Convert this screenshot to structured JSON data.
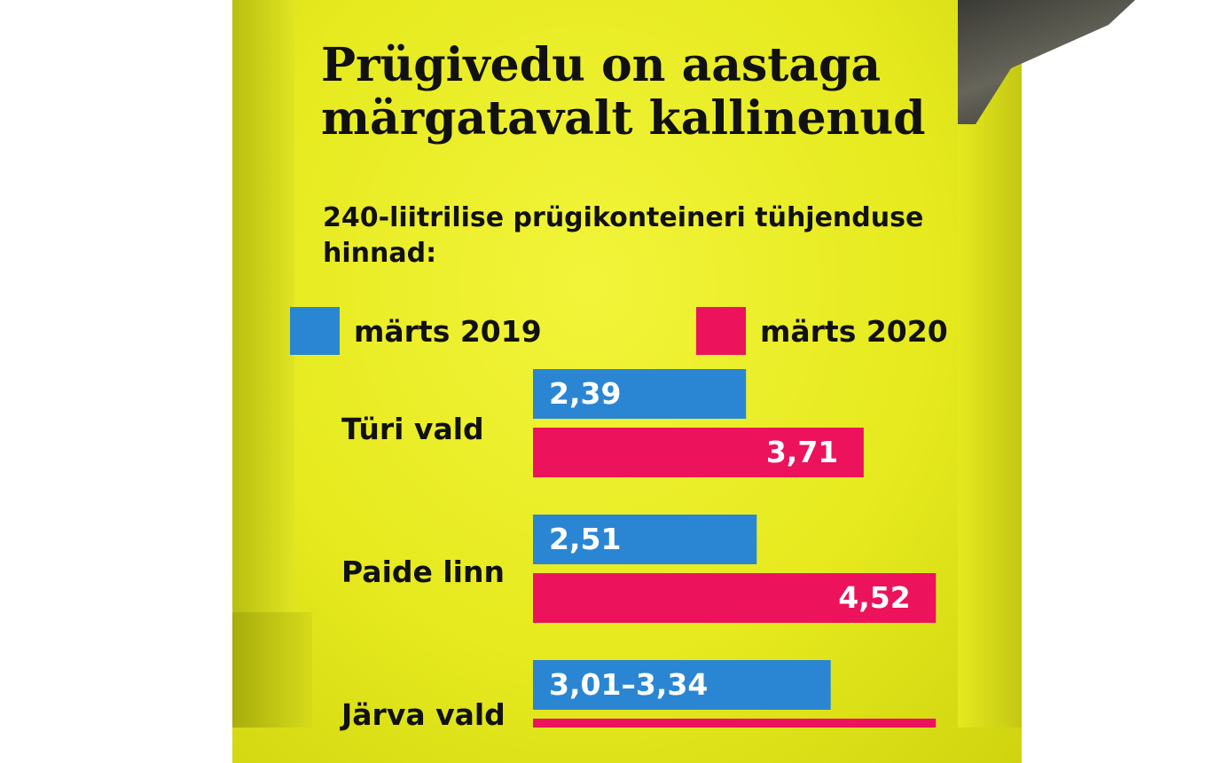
{
  "colors": {
    "series_2019": "#2a86d3",
    "series_2020": "#ec125c",
    "bin": "#e8ec22",
    "text": "#111111"
  },
  "chart_data": {
    "type": "bar",
    "orientation": "horizontal",
    "title": "Prügivedu on aastaga märgatavalt kallinenud",
    "subtitle": "240-liitrilise prügikonteineri tühjenduse hinnad:",
    "legend_position": "top",
    "categories": [
      "Türi vald",
      "Paide linn",
      "Järva vald"
    ],
    "series": [
      {
        "name": "märts 2019",
        "values": [
          2.39,
          2.51,
          3.34
        ],
        "labels": [
          "2,39",
          "2,51",
          "3,01–3,34"
        ]
      },
      {
        "name": "märts 2020",
        "values": [
          3.71,
          4.52,
          4.52
        ],
        "labels": [
          "3,71",
          "4,52",
          ""
        ]
      }
    ]
  }
}
